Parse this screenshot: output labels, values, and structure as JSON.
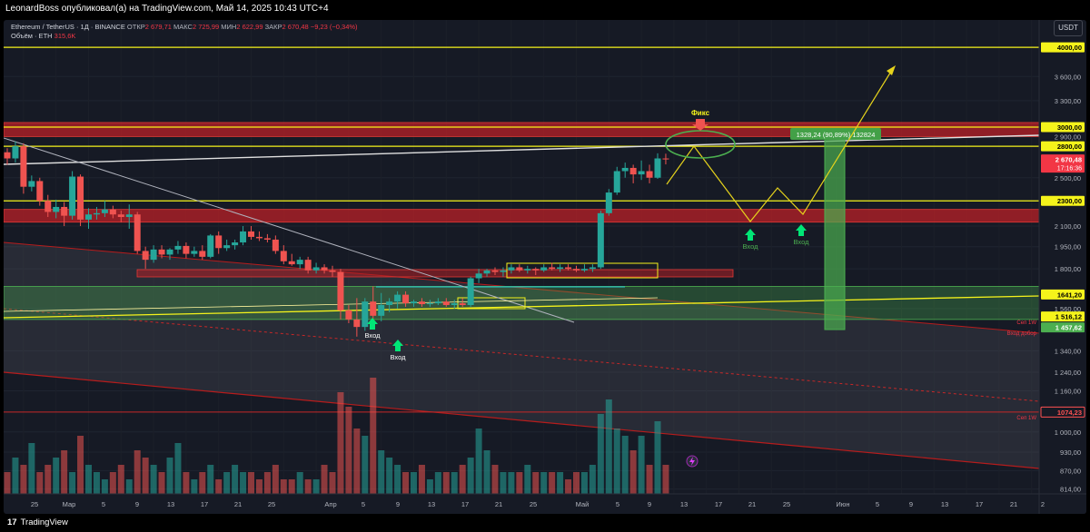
{
  "header": {
    "published_by": "LeonardBoss опубликовал(а) на TradingView.com, Май 14, 2025 10:43 UTC+4"
  },
  "legend": {
    "symbol": "Ethereum / TetherUS · 1Д · BINANCE",
    "open_label": "ОТКР",
    "open_value": "2 679,71",
    "high_label": "МАКС",
    "high_value": "2 725,99",
    "low_label": "МИН",
    "low_value": "2 622,99",
    "close_label": "ЗАКР",
    "close_value": "2 670,48",
    "change_value": "−9,23 (−0,34%)",
    "volume_label": "Объём · ETH",
    "volume_value": "315,6K"
  },
  "currency_badge": "USDT",
  "footer": {
    "logo_text": "TradingView"
  },
  "colors": {
    "background": "#161a25",
    "up": "#26a69a",
    "down": "#ef5350",
    "level_yellow": "#f5f31b",
    "zone_red": "#b32026",
    "zone_green": "#4caf50",
    "label_green": "#4caf50",
    "label_red": "#f23645"
  },
  "chart_data": {
    "type": "candlestick",
    "instrument": "Ethereum / TetherUS",
    "timeframe": "1Д",
    "exchange": "BINANCE",
    "y_scale": "log",
    "y_range": [
      800,
      4300
    ],
    "x_tick_labels": [
      "25",
      "Мар",
      "5",
      "9",
      "13",
      "17",
      "21",
      "25",
      "Апр",
      "5",
      "9",
      "13",
      "17",
      "21",
      "25",
      "Май",
      "5",
      "9",
      "13",
      "17",
      "21",
      "25",
      "Июн",
      "5",
      "9",
      "13",
      "17",
      "21",
      "2"
    ],
    "y_tick_labels": [
      "3 600,00",
      "3 300,00",
      "2 900,00",
      "2 500,00",
      "2 100,00",
      "1 950,00",
      "1 800,00",
      "1 560,00",
      "1 340,00",
      "1 240,00",
      "1 160,00",
      "1 000,00",
      "930,00",
      "870,00",
      "814,00"
    ],
    "price_labels": [
      {
        "text": "4000,00",
        "value": 4000,
        "style": "yellow"
      },
      {
        "text": "3000,00",
        "value": 3000,
        "style": "yellow"
      },
      {
        "text": "2800,00",
        "value": 2800,
        "style": "yellow"
      },
      {
        "text": "2 670,48",
        "value": 2670.48,
        "style": "red",
        "sub": "17:16:36"
      },
      {
        "text": "2300,00",
        "value": 2300,
        "style": "yellow"
      },
      {
        "text": "1641,20",
        "value": 1641.2,
        "style": "yellow"
      },
      {
        "text": "1 516,12",
        "value": 1516.12,
        "style": "yellow"
      },
      {
        "text": "1 457,62",
        "value": 1457.62,
        "style": "green"
      },
      {
        "text": "1074,23",
        "value": 1074.23,
        "style": "outline"
      }
    ],
    "horizontal_levels": [
      4000,
      3000,
      2800,
      2300,
      1074.23
    ],
    "zones": [
      {
        "kind": "resistance",
        "from": 2900,
        "to": 3050
      },
      {
        "kind": "resistance",
        "from": 2130,
        "to": 2230
      },
      {
        "kind": "support",
        "from": 1500,
        "to": 1690
      }
    ],
    "annotations": [
      {
        "text": "Фикс",
        "color": "#f5f31b"
      },
      {
        "text": "Вход",
        "color": "#ffffff"
      },
      {
        "text": "Вход",
        "color": "#ffffff"
      },
      {
        "text": "Вход",
        "color": "#4caf50"
      },
      {
        "text": "Вход",
        "color": "#4caf50"
      },
      {
        "text": "Сеп 1W",
        "color": "#f23645"
      },
      {
        "text": "Вход добор",
        "color": "#f23645"
      },
      {
        "text": "Сеп 1W",
        "color": "#f23645"
      },
      {
        "text": "1328,24 (90,89%) 132824",
        "color": "#ffffff"
      }
    ],
    "candles": [
      {
        "o": 2740,
        "h": 2780,
        "l": 2620,
        "c": 2680
      },
      {
        "o": 2680,
        "h": 2850,
        "l": 2640,
        "c": 2800
      },
      {
        "o": 2800,
        "h": 2830,
        "l": 2360,
        "c": 2420
      },
      {
        "o": 2420,
        "h": 2520,
        "l": 2380,
        "c": 2470
      },
      {
        "o": 2470,
        "h": 2500,
        "l": 2260,
        "c": 2300
      },
      {
        "o": 2300,
        "h": 2350,
        "l": 2170,
        "c": 2210
      },
      {
        "o": 2210,
        "h": 2310,
        "l": 2160,
        "c": 2250
      },
      {
        "o": 2250,
        "h": 2290,
        "l": 2100,
        "c": 2180
      },
      {
        "o": 2180,
        "h": 2560,
        "l": 2150,
        "c": 2510
      },
      {
        "o": 2510,
        "h": 2530,
        "l": 2100,
        "c": 2150
      },
      {
        "o": 2150,
        "h": 2240,
        "l": 2080,
        "c": 2190
      },
      {
        "o": 2190,
        "h": 2250,
        "l": 2150,
        "c": 2200
      },
      {
        "o": 2200,
        "h": 2300,
        "l": 2170,
        "c": 2230
      },
      {
        "o": 2230,
        "h": 2260,
        "l": 2160,
        "c": 2190
      },
      {
        "o": 2190,
        "h": 2220,
        "l": 2130,
        "c": 2170
      },
      {
        "o": 2170,
        "h": 2270,
        "l": 2080,
        "c": 2190
      },
      {
        "o": 2190,
        "h": 2210,
        "l": 1900,
        "c": 1920
      },
      {
        "o": 1920,
        "h": 1950,
        "l": 1800,
        "c": 1860
      },
      {
        "o": 1860,
        "h": 1960,
        "l": 1840,
        "c": 1930
      },
      {
        "o": 1930,
        "h": 1960,
        "l": 1870,
        "c": 1895
      },
      {
        "o": 1895,
        "h": 1940,
        "l": 1860,
        "c": 1930
      },
      {
        "o": 1930,
        "h": 1990,
        "l": 1900,
        "c": 1955
      },
      {
        "o": 1955,
        "h": 1980,
        "l": 1870,
        "c": 1900
      },
      {
        "o": 1900,
        "h": 1950,
        "l": 1880,
        "c": 1920
      },
      {
        "o": 1920,
        "h": 1960,
        "l": 1860,
        "c": 1880
      },
      {
        "o": 1880,
        "h": 2040,
        "l": 1870,
        "c": 2030
      },
      {
        "o": 2030,
        "h": 2060,
        "l": 1900,
        "c": 1940
      },
      {
        "o": 1940,
        "h": 2000,
        "l": 1920,
        "c": 1960
      },
      {
        "o": 1960,
        "h": 2000,
        "l": 1930,
        "c": 1980
      },
      {
        "o": 1980,
        "h": 2100,
        "l": 1960,
        "c": 2060
      },
      {
        "o": 2060,
        "h": 2100,
        "l": 2000,
        "c": 2020
      },
      {
        "o": 2020,
        "h": 2060,
        "l": 1990,
        "c": 2010
      },
      {
        "o": 2010,
        "h": 2040,
        "l": 1980,
        "c": 2000
      },
      {
        "o": 2000,
        "h": 2030,
        "l": 1900,
        "c": 1920
      },
      {
        "o": 1920,
        "h": 1960,
        "l": 1830,
        "c": 1850
      },
      {
        "o": 1850,
        "h": 1900,
        "l": 1820,
        "c": 1830
      },
      {
        "o": 1830,
        "h": 1880,
        "l": 1800,
        "c": 1860
      },
      {
        "o": 1860,
        "h": 1880,
        "l": 1770,
        "c": 1790
      },
      {
        "o": 1790,
        "h": 1840,
        "l": 1770,
        "c": 1810
      },
      {
        "o": 1810,
        "h": 1830,
        "l": 1770,
        "c": 1790
      },
      {
        "o": 1790,
        "h": 1820,
        "l": 1750,
        "c": 1780
      },
      {
        "o": 1780,
        "h": 1800,
        "l": 1500,
        "c": 1550
      },
      {
        "o": 1550,
        "h": 1580,
        "l": 1480,
        "c": 1500
      },
      {
        "o": 1500,
        "h": 1620,
        "l": 1410,
        "c": 1460
      },
      {
        "o": 1460,
        "h": 1620,
        "l": 1440,
        "c": 1600
      },
      {
        "o": 1600,
        "h": 1690,
        "l": 1480,
        "c": 1520
      },
      {
        "o": 1520,
        "h": 1650,
        "l": 1490,
        "c": 1580
      },
      {
        "o": 1580,
        "h": 1620,
        "l": 1540,
        "c": 1600
      },
      {
        "o": 1600,
        "h": 1660,
        "l": 1560,
        "c": 1640
      },
      {
        "o": 1640,
        "h": 1660,
        "l": 1570,
        "c": 1590
      },
      {
        "o": 1590,
        "h": 1610,
        "l": 1570,
        "c": 1600
      },
      {
        "o": 1600,
        "h": 1620,
        "l": 1570,
        "c": 1585
      },
      {
        "o": 1585,
        "h": 1610,
        "l": 1570,
        "c": 1590
      },
      {
        "o": 1590,
        "h": 1620,
        "l": 1580,
        "c": 1600
      },
      {
        "o": 1600,
        "h": 1620,
        "l": 1570,
        "c": 1580
      },
      {
        "o": 1580,
        "h": 1610,
        "l": 1560,
        "c": 1590
      },
      {
        "o": 1590,
        "h": 1620,
        "l": 1570,
        "c": 1580
      },
      {
        "o": 1580,
        "h": 1750,
        "l": 1570,
        "c": 1740
      },
      {
        "o": 1740,
        "h": 1800,
        "l": 1710,
        "c": 1770
      },
      {
        "o": 1770,
        "h": 1800,
        "l": 1750,
        "c": 1790
      },
      {
        "o": 1790,
        "h": 1810,
        "l": 1760,
        "c": 1780
      },
      {
        "o": 1780,
        "h": 1810,
        "l": 1750,
        "c": 1790
      },
      {
        "o": 1790,
        "h": 1830,
        "l": 1770,
        "c": 1810
      },
      {
        "o": 1810,
        "h": 1830,
        "l": 1780,
        "c": 1790
      },
      {
        "o": 1790,
        "h": 1820,
        "l": 1770,
        "c": 1800
      },
      {
        "o": 1800,
        "h": 1810,
        "l": 1760,
        "c": 1790
      },
      {
        "o": 1790,
        "h": 1830,
        "l": 1780,
        "c": 1810
      },
      {
        "o": 1810,
        "h": 1840,
        "l": 1790,
        "c": 1800
      },
      {
        "o": 1800,
        "h": 1830,
        "l": 1780,
        "c": 1810
      },
      {
        "o": 1810,
        "h": 1830,
        "l": 1790,
        "c": 1800
      },
      {
        "o": 1800,
        "h": 1820,
        "l": 1780,
        "c": 1790
      },
      {
        "o": 1790,
        "h": 1830,
        "l": 1780,
        "c": 1800
      },
      {
        "o": 1800,
        "h": 1830,
        "l": 1780,
        "c": 1810
      },
      {
        "o": 1810,
        "h": 2220,
        "l": 1800,
        "c": 2200
      },
      {
        "o": 2200,
        "h": 2400,
        "l": 2180,
        "c": 2370
      },
      {
        "o": 2370,
        "h": 2600,
        "l": 2350,
        "c": 2560
      },
      {
        "o": 2560,
        "h": 2640,
        "l": 2500,
        "c": 2590
      },
      {
        "o": 2590,
        "h": 2620,
        "l": 2450,
        "c": 2530
      },
      {
        "o": 2530,
        "h": 2660,
        "l": 2480,
        "c": 2560
      },
      {
        "o": 2560,
        "h": 2620,
        "l": 2450,
        "c": 2500
      },
      {
        "o": 2500,
        "h": 2730,
        "l": 2490,
        "c": 2680
      },
      {
        "o": 2679.71,
        "h": 2725.99,
        "l": 2622.99,
        "c": 2670.48
      }
    ],
    "volume": [
      3,
      5,
      4,
      7,
      3,
      4,
      5,
      6,
      3,
      8,
      4,
      3,
      2,
      3,
      4,
      2,
      6,
      5,
      4,
      3,
      5,
      7,
      3,
      2,
      3,
      4,
      2,
      3,
      4,
      3,
      3,
      2,
      3,
      4,
      2,
      2,
      3,
      2,
      2,
      4,
      3,
      14,
      12,
      9,
      8,
      16,
      6,
      5,
      4,
      3,
      3,
      4,
      2,
      3,
      3,
      3,
      4,
      5,
      9,
      6,
      4,
      3,
      3,
      3,
      4,
      3,
      3,
      3,
      3,
      2,
      3,
      3,
      4,
      11,
      13,
      9,
      8,
      6,
      8,
      4,
      10,
      4
    ],
    "volume_max": 16
  }
}
